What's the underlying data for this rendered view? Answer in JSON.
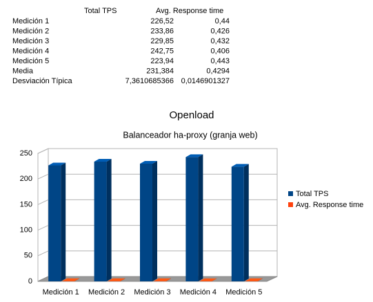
{
  "table": {
    "header": [
      "Total TPS",
      "Avg. Response time"
    ],
    "rows": [
      [
        "Medición 1",
        "226,52",
        "0,44"
      ],
      [
        "Medición 2",
        "233,86",
        "0,426"
      ],
      [
        "Medición 3",
        "229,85",
        "0,432"
      ],
      [
        "Medición 4",
        "242,75",
        "0,406"
      ],
      [
        "Medición 5",
        "223,94",
        "0,443"
      ],
      [
        "Media",
        "231,384",
        "0,4294"
      ],
      [
        "Desviación Típica",
        "7,3610685366",
        "0,0146901327"
      ]
    ]
  },
  "chart_data": {
    "type": "bar3d",
    "title": "Openload",
    "subtitle": "Balanceador ha-proxy (granja web)",
    "categories": [
      "Medición 1",
      "Medición 2",
      "Medición 3",
      "Medición 4",
      "Medición 5"
    ],
    "series": [
      {
        "name": "Total TPS",
        "color": "#004586",
        "values": [
          226.52,
          233.86,
          229.85,
          242.75,
          223.94
        ]
      },
      {
        "name": "Avg. Response time",
        "color": "#ff420e",
        "values": [
          0.44,
          0.426,
          0.432,
          0.406,
          0.443
        ]
      }
    ],
    "ylim": [
      0,
      250
    ],
    "yticks": [
      0,
      50,
      100,
      150,
      200,
      250
    ],
    "grid": true,
    "legend": "right"
  }
}
